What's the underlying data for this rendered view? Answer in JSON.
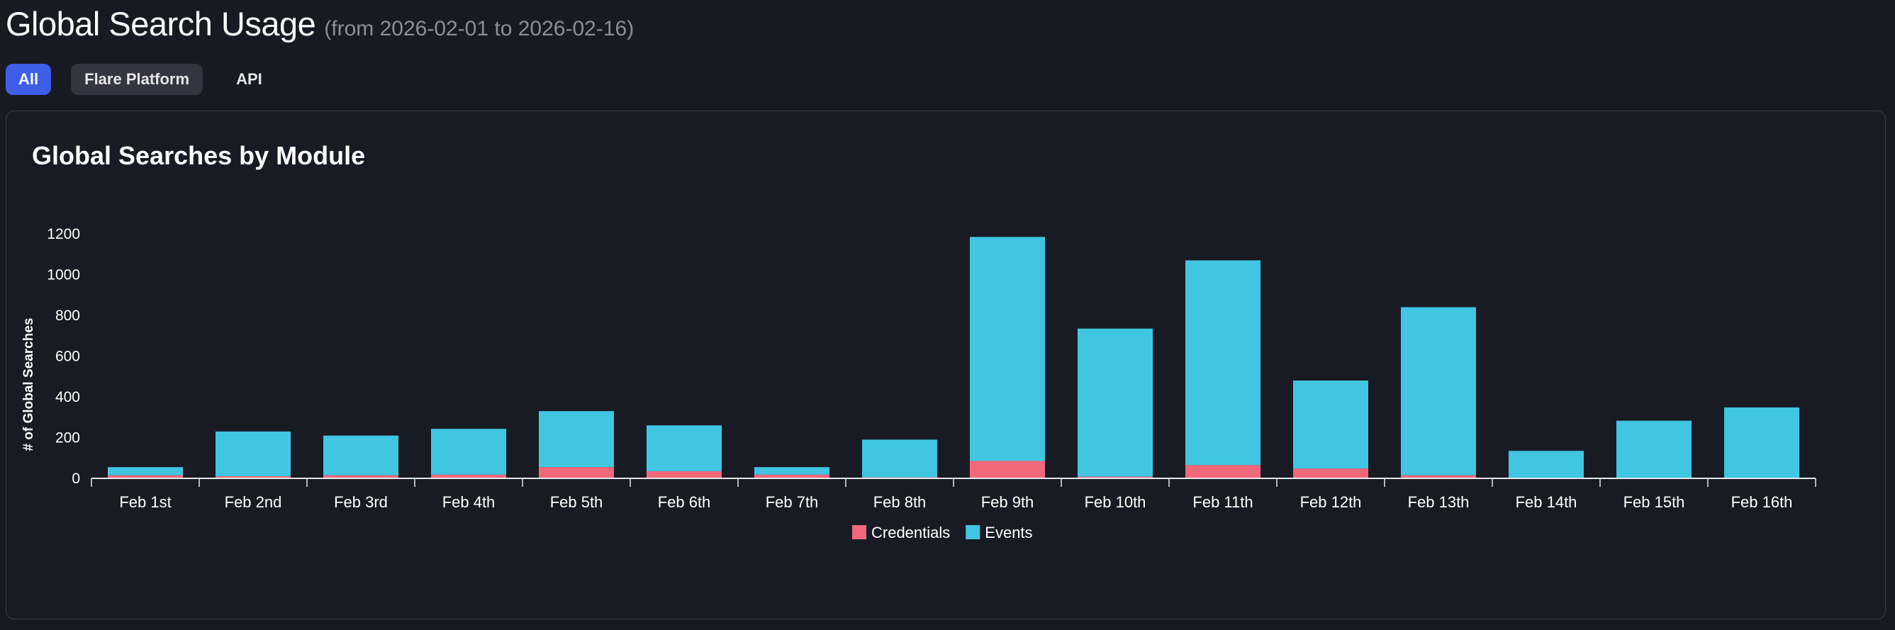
{
  "header": {
    "title": "Global Search Usage",
    "subtitle": "(from 2026-02-01 to 2026-02-16)"
  },
  "tabs": [
    {
      "label": "All",
      "active": true
    },
    {
      "label": "Flare Platform",
      "active": false
    },
    {
      "label": "API",
      "active": false
    }
  ],
  "card": {
    "title": "Global Searches by Module"
  },
  "colors": {
    "background": "#181a23",
    "credentials": "#f2687b",
    "events": "#40c6e2",
    "accent": "#3f5ee8"
  },
  "chart_data": {
    "type": "bar",
    "stacked": true,
    "categories": [
      "Feb 1st",
      "Feb 2nd",
      "Feb 3rd",
      "Feb 4th",
      "Feb 5th",
      "Feb 6th",
      "Feb 7th",
      "Feb 8th",
      "Feb 9th",
      "Feb 10th",
      "Feb 11th",
      "Feb 12th",
      "Feb 13th",
      "Feb 14th",
      "Feb 15th",
      "Feb 16th"
    ],
    "series": [
      {
        "name": "Credentials",
        "values": [
          15,
          10,
          15,
          18,
          55,
          35,
          18,
          5,
          85,
          8,
          65,
          48,
          15,
          3,
          3,
          3
        ]
      },
      {
        "name": "Events",
        "values": [
          40,
          220,
          195,
          225,
          275,
          225,
          37,
          185,
          1100,
          727,
          1005,
          432,
          825,
          132,
          280,
          345
        ]
      }
    ],
    "xlabel": "",
    "ylabel": "# of Global Searches",
    "ylim": [
      0,
      1200
    ],
    "yticks": [
      0,
      200,
      400,
      600,
      800,
      1000,
      1200
    ],
    "legend_position": "bottom-center",
    "grid": false
  }
}
